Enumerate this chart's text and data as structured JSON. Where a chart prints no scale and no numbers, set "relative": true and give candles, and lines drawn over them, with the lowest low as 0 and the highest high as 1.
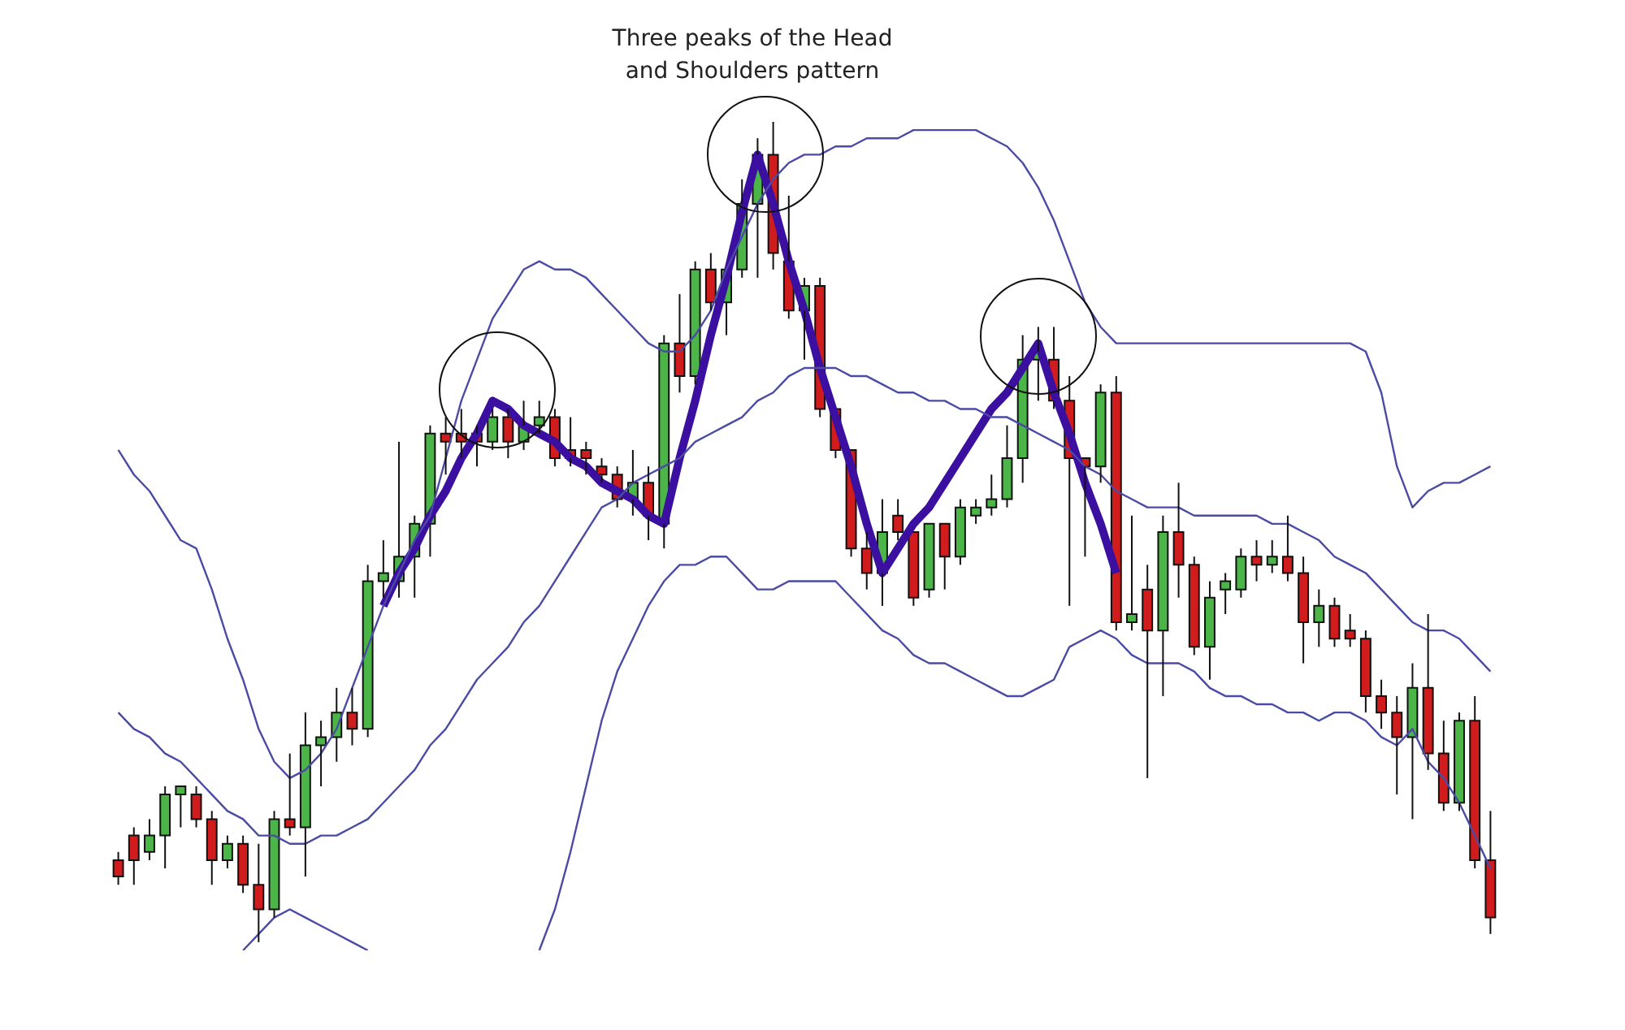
{
  "chart_data": {
    "type": "candlestick",
    "title": "Three peaks of the Head and Shoulders pattern",
    "relative": true,
    "tick_labels": false,
    "categories": [
      null,
      null,
      null,
      null,
      null,
      null,
      null,
      null,
      null,
      null,
      null,
      null,
      null,
      null,
      null,
      null,
      null,
      null,
      null,
      null,
      null,
      null,
      null,
      null,
      null,
      null,
      null,
      null,
      null,
      null,
      null,
      null,
      null,
      null,
      null,
      null,
      null,
      null,
      null,
      null,
      null,
      null,
      null,
      null,
      null,
      null,
      null,
      null,
      null,
      null,
      null,
      null,
      null,
      null,
      null,
      null,
      null,
      null,
      null,
      null,
      null,
      null,
      null,
      null,
      null,
      null,
      null,
      null,
      null,
      null,
      null,
      null,
      null,
      null,
      null,
      null,
      null,
      null,
      null,
      null,
      null,
      null,
      null,
      null,
      null,
      null,
      null,
      null,
      null
    ],
    "ohlc": [
      [
        0.1,
        0.11,
        0.07,
        0.08
      ],
      [
        0.13,
        0.14,
        0.07,
        0.1
      ],
      [
        0.11,
        0.15,
        0.1,
        0.13
      ],
      [
        0.13,
        0.19,
        0.09,
        0.18
      ],
      [
        0.18,
        0.19,
        0.14,
        0.19
      ],
      [
        0.18,
        0.19,
        0.14,
        0.15
      ],
      [
        0.15,
        0.16,
        0.07,
        0.1
      ],
      [
        0.1,
        0.13,
        0.09,
        0.12
      ],
      [
        0.12,
        0.13,
        0.06,
        0.07
      ],
      [
        0.07,
        0.12,
        0,
        0.04
      ],
      [
        0.04,
        0.16,
        0.03,
        0.15
      ],
      [
        0.15,
        0.23,
        0.13,
        0.14
      ],
      [
        0.14,
        0.28,
        0.08,
        0.24
      ],
      [
        0.24,
        0.27,
        0.19,
        0.25
      ],
      [
        0.25,
        0.31,
        0.22,
        0.28
      ],
      [
        0.28,
        0.31,
        0.24,
        0.26
      ],
      [
        0.26,
        0.46,
        0.25,
        0.44
      ],
      [
        0.44,
        0.49,
        0.42,
        0.45
      ],
      [
        0.44,
        0.61,
        0.42,
        0.47
      ],
      [
        0.47,
        0.52,
        0.42,
        0.51
      ],
      [
        0.51,
        0.63,
        0.47,
        0.62
      ],
      [
        0.62,
        0.64,
        0.57,
        0.61
      ],
      [
        0.62,
        0.65,
        0.59,
        0.61
      ],
      [
        0.62,
        0.63,
        0.58,
        0.61
      ],
      [
        0.61,
        0.65,
        0.6,
        0.64
      ],
      [
        0.64,
        0.65,
        0.59,
        0.61
      ],
      [
        0.61,
        0.66,
        0.6,
        0.63
      ],
      [
        0.63,
        0.66,
        0.62,
        0.64
      ],
      [
        0.64,
        0.65,
        0.58,
        0.59
      ],
      [
        0.6,
        0.64,
        0.58,
        0.59
      ],
      [
        0.6,
        0.61,
        0.57,
        0.59
      ],
      [
        0.58,
        0.59,
        0.56,
        0.57
      ],
      [
        0.57,
        0.58,
        0.53,
        0.54
      ],
      [
        0.54,
        0.6,
        0.52,
        0.56
      ],
      [
        0.56,
        0.58,
        0.49,
        0.52
      ],
      [
        0.51,
        0.74,
        0.48,
        0.73
      ],
      [
        0.73,
        0.79,
        0.67,
        0.69
      ],
      [
        0.69,
        0.83,
        0.68,
        0.82
      ],
      [
        0.82,
        0.84,
        0.77,
        0.78
      ],
      [
        0.78,
        0.82,
        0.74,
        0.82
      ],
      [
        0.82,
        0.93,
        0.81,
        0.9
      ],
      [
        0.9,
        0.98,
        0.81,
        0.96
      ],
      [
        0.96,
        1.0,
        0.82,
        0.84
      ],
      [
        0.83,
        0.91,
        0.76,
        0.77
      ],
      [
        0.77,
        0.81,
        0.71,
        0.8
      ],
      [
        0.8,
        0.81,
        0.64,
        0.65
      ],
      [
        0.65,
        0.65,
        0.59,
        0.6
      ],
      [
        0.6,
        0.6,
        0.47,
        0.48
      ],
      [
        0.48,
        0.5,
        0.43,
        0.45
      ],
      [
        0.45,
        0.54,
        0.41,
        0.5
      ],
      [
        0.52,
        0.54,
        0.49,
        0.5
      ],
      [
        0.5,
        0.5,
        0.41,
        0.42
      ],
      [
        0.43,
        0.51,
        0.42,
        0.51
      ],
      [
        0.51,
        0.51,
        0.43,
        0.47
      ],
      [
        0.47,
        0.54,
        0.46,
        0.53
      ],
      [
        0.52,
        0.54,
        0.51,
        0.53
      ],
      [
        0.53,
        0.57,
        0.52,
        0.54
      ],
      [
        0.54,
        0.63,
        0.53,
        0.59
      ],
      [
        0.59,
        0.74,
        0.56,
        0.71
      ],
      [
        0.71,
        0.75,
        0.66,
        0.72
      ],
      [
        0.71,
        0.75,
        0.65,
        0.66
      ],
      [
        0.66,
        0.69,
        0.41,
        0.59
      ],
      [
        0.59,
        0.59,
        0.47,
        0.58
      ],
      [
        0.58,
        0.68,
        0.56,
        0.67
      ],
      [
        0.67,
        0.69,
        0.38,
        0.39
      ],
      [
        0.39,
        0.52,
        0.38,
        0.4
      ],
      [
        0.43,
        0.46,
        0.2,
        0.38
      ],
      [
        0.38,
        0.52,
        0.3,
        0.5
      ],
      [
        0.5,
        0.56,
        0.42,
        0.46
      ],
      [
        0.46,
        0.47,
        0.35,
        0.36
      ],
      [
        0.36,
        0.44,
        0.32,
        0.42
      ],
      [
        0.43,
        0.45,
        0.4,
        0.44
      ],
      [
        0.43,
        0.48,
        0.42,
        0.47
      ],
      [
        0.47,
        0.49,
        0.44,
        0.46
      ],
      [
        0.46,
        0.49,
        0.45,
        0.47
      ],
      [
        0.47,
        0.52,
        0.44,
        0.45
      ],
      [
        0.45,
        0.47,
        0.34,
        0.39
      ],
      [
        0.39,
        0.43,
        0.36,
        0.41
      ],
      [
        0.41,
        0.42,
        0.36,
        0.37
      ],
      [
        0.38,
        0.4,
        0.36,
        0.37
      ],
      [
        0.37,
        0.38,
        0.28,
        0.3
      ],
      [
        0.3,
        0.32,
        0.26,
        0.28
      ],
      [
        0.28,
        0.3,
        0.18,
        0.25
      ],
      [
        0.25,
        0.34,
        0.15,
        0.31
      ],
      [
        0.31,
        0.4,
        0.21,
        0.23
      ],
      [
        0.23,
        0.27,
        0.16,
        0.17
      ],
      [
        0.17,
        0.28,
        0.16,
        0.27
      ],
      [
        0.27,
        0.3,
        0.09,
        0.1
      ],
      [
        0.1,
        0.16,
        0.01,
        0.03
      ]
    ],
    "series": [
      {
        "type": "line",
        "color": "#4b4ba6",
        "values": [
          0.6,
          0.57,
          0.55,
          0.52,
          0.49,
          0.48,
          0.43,
          0.37,
          0.32,
          0.26,
          0.22,
          0.2,
          0.21,
          0.23,
          0.26,
          0.31,
          0.36,
          0.41,
          0.45,
          0.49,
          0.52,
          0.59,
          0.66,
          0.71,
          0.76,
          0.79,
          0.82,
          0.83,
          0.82,
          0.82,
          0.81,
          0.79,
          0.77,
          0.75,
          0.73,
          0.72,
          0.72,
          0.74,
          0.77,
          0.82,
          0.86,
          0.9,
          0.93,
          0.95,
          0.96,
          0.96,
          0.97,
          0.97,
          0.98,
          0.98,
          0.98,
          0.99,
          0.99,
          0.99,
          0.99,
          0.99,
          0.98,
          0.97,
          0.95,
          0.92,
          0.88,
          0.83,
          0.78,
          0.75,
          0.73,
          0.73,
          0.73,
          0.73,
          0.73,
          0.73,
          0.73,
          0.73,
          0.73,
          0.73,
          0.73,
          0.73,
          0.73,
          0.73,
          0.73,
          0.73,
          0.72,
          0.67,
          0.58,
          0.53,
          0.55,
          0.56,
          0.56,
          0.57,
          0.58
        ]
      },
      {
        "type": "line",
        "color": "#4b4ba6",
        "values": [
          0.28,
          0.26,
          0.25,
          0.23,
          0.22,
          0.2,
          0.18,
          0.16,
          0.15,
          0.13,
          0.13,
          0.12,
          0.12,
          0.13,
          0.13,
          0.14,
          0.15,
          0.17,
          0.19,
          0.21,
          0.24,
          0.26,
          0.29,
          0.32,
          0.34,
          0.36,
          0.39,
          0.41,
          0.44,
          0.47,
          0.5,
          0.53,
          0.54,
          0.56,
          0.57,
          0.58,
          0.59,
          0.61,
          0.62,
          0.63,
          0.64,
          0.66,
          0.67,
          0.69,
          0.7,
          0.7,
          0.7,
          0.69,
          0.69,
          0.68,
          0.67,
          0.67,
          0.66,
          0.66,
          0.65,
          0.65,
          0.64,
          0.64,
          0.63,
          0.62,
          0.61,
          0.6,
          0.58,
          0.57,
          0.55,
          0.54,
          0.53,
          0.53,
          0.53,
          0.52,
          0.52,
          0.52,
          0.52,
          0.52,
          0.51,
          0.51,
          0.5,
          0.49,
          0.47,
          0.46,
          0.45,
          0.43,
          0.41,
          0.39,
          0.38,
          0.38,
          0.37,
          0.35,
          0.33
        ]
      },
      {
        "type": "line",
        "color": "#4b4ba6",
        "values": [
          null,
          null,
          null,
          null,
          null,
          null,
          null,
          null,
          -0.01,
          0.01,
          0.03,
          0.04,
          0.03,
          0.02,
          0.01,
          0.0,
          -0.01,
          null,
          null,
          null,
          null,
          null,
          null,
          null,
          null,
          null,
          null,
          -0.01,
          0.04,
          0.11,
          0.19,
          0.27,
          0.33,
          0.37,
          0.41,
          0.44,
          0.46,
          0.46,
          0.47,
          0.47,
          0.45,
          0.43,
          0.43,
          0.44,
          0.44,
          0.44,
          0.44,
          0.42,
          0.4,
          0.38,
          0.37,
          0.35,
          0.34,
          0.34,
          0.33,
          0.32,
          0.31,
          0.3,
          0.3,
          0.31,
          0.32,
          0.36,
          0.37,
          0.38,
          0.37,
          0.35,
          0.34,
          0.34,
          0.34,
          0.33,
          0.31,
          0.3,
          0.3,
          0.29,
          0.29,
          0.28,
          0.28,
          0.27,
          0.28,
          0.28,
          0.27,
          0.25,
          0.24,
          0.26,
          0.22,
          0.2,
          0.17,
          0.13,
          0.09
        ]
      },
      {
        "type": "line",
        "color": "#3b0fa0",
        "values": [
          null,
          null,
          null,
          null,
          null,
          null,
          null,
          null,
          null,
          null,
          null,
          null,
          null,
          null,
          null,
          null,
          null,
          0.41,
          0.45,
          0.48,
          0.52,
          0.55,
          0.59,
          0.62,
          0.66,
          0.65,
          0.63,
          0.62,
          0.61,
          0.59,
          0.58,
          0.56,
          0.55,
          0.54,
          0.52,
          0.51,
          0.59,
          0.66,
          0.74,
          0.81,
          0.89,
          0.96,
          0.9,
          0.83,
          0.77,
          0.7,
          0.64,
          0.58,
          0.51,
          0.45,
          0.48,
          0.51,
          0.53,
          0.56,
          0.59,
          0.62,
          0.65,
          0.67,
          0.7,
          0.73,
          0.67,
          0.62,
          0.56,
          0.51,
          0.45,
          null,
          null,
          null,
          null,
          null,
          null,
          null,
          null,
          null,
          null,
          null,
          null,
          null,
          null,
          null,
          null,
          null,
          null,
          null,
          null,
          null,
          null,
          null,
          null
        ]
      }
    ]
  }
}
